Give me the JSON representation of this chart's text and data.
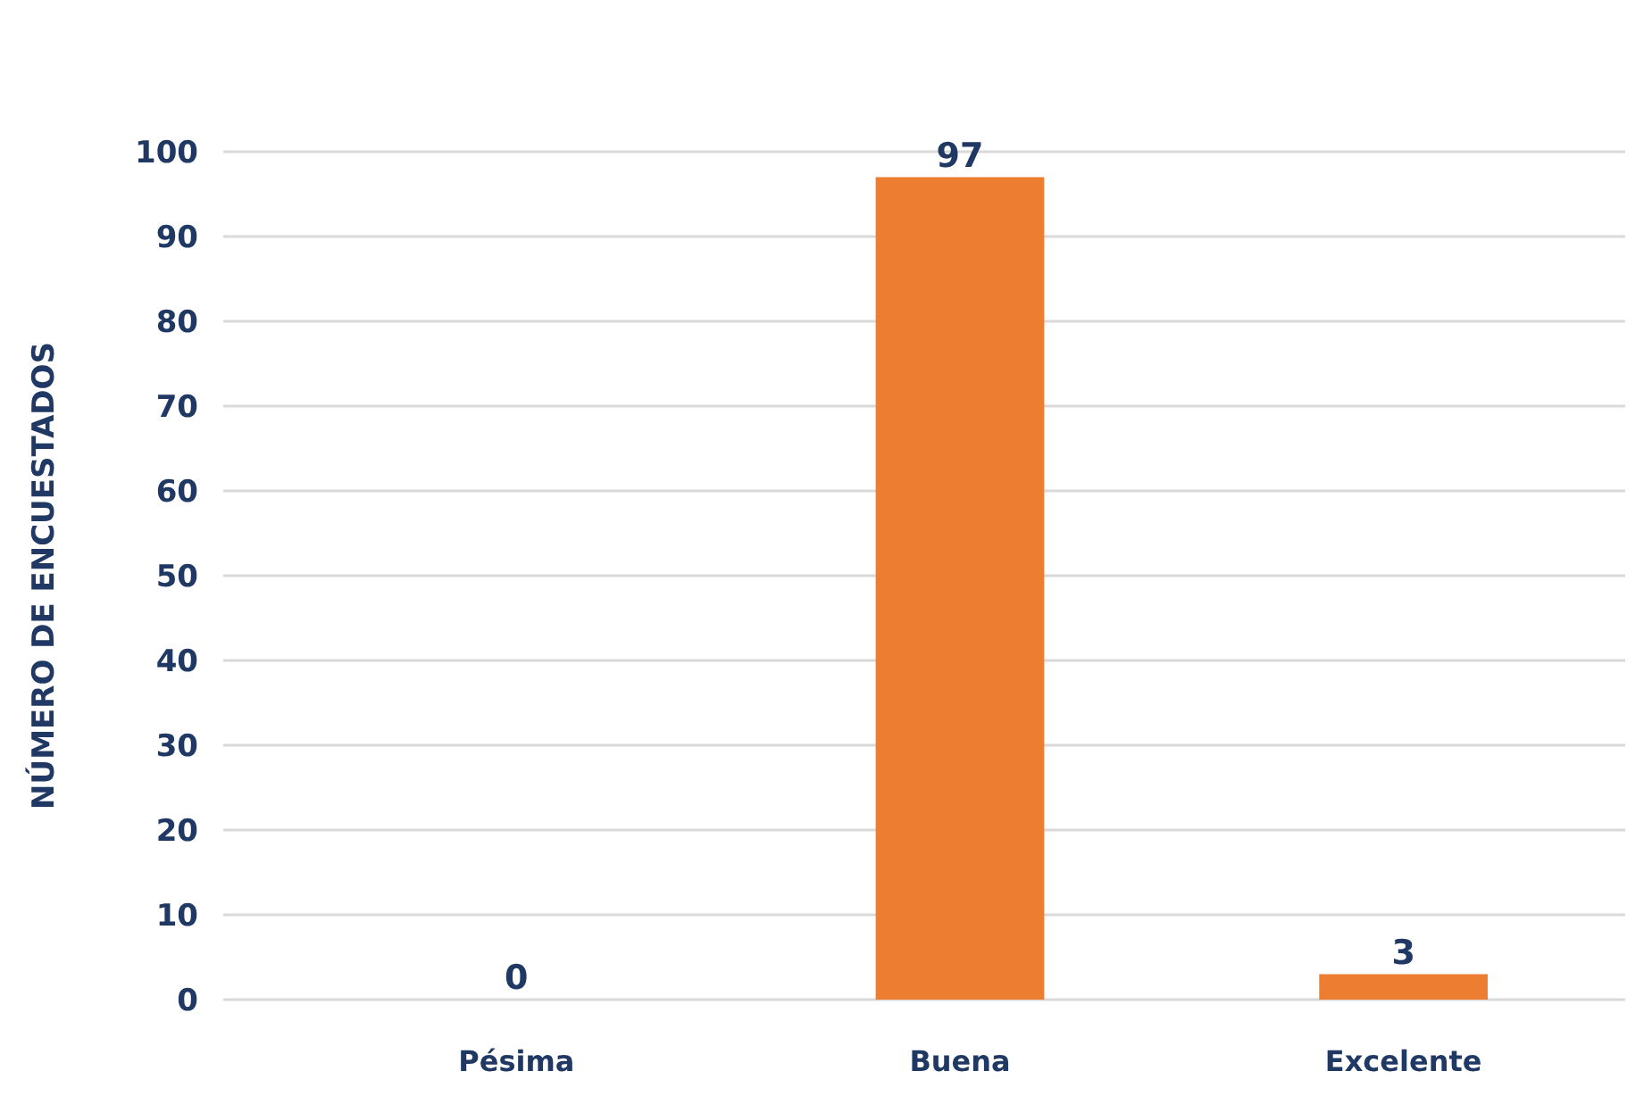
{
  "chart_data": {
    "type": "bar",
    "categories": [
      "Pésima",
      "Buena",
      "Excelente"
    ],
    "values": [
      0,
      97,
      3
    ],
    "color": "#ed7d31",
    "ylabel": "NÚMERO DE ENCUESTADOS",
    "ylim": [
      0,
      100
    ],
    "yticks": [
      0,
      10,
      20,
      30,
      40,
      50,
      60,
      70,
      80,
      90,
      100
    ],
    "grid": "y",
    "data_labels": true
  }
}
